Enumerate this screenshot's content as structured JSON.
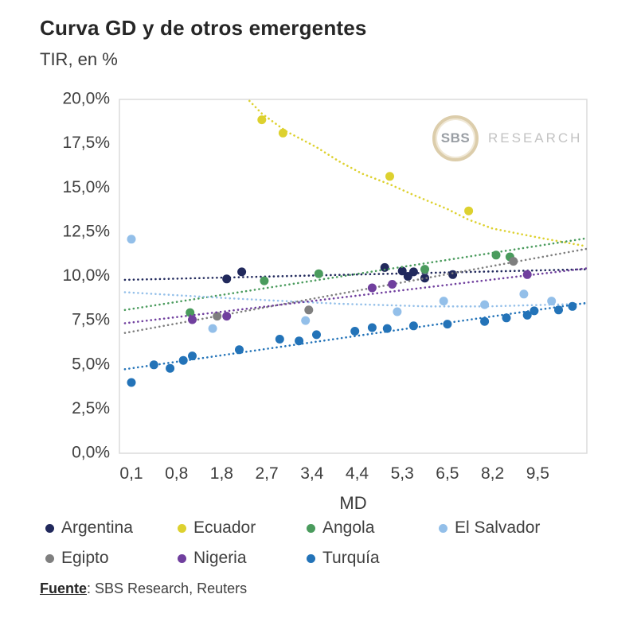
{
  "title": "Curva GD y de otros emergentes",
  "y_axis_title": "TIR, en %",
  "x_axis_label": "MD",
  "watermark": {
    "circle_text": "SBS",
    "text": "RESEARCH"
  },
  "footer": {
    "label": "Fuente",
    "text": ": SBS Research, Reuters"
  },
  "chart_data": {
    "type": "scatter",
    "title": "Curva GD y de otros emergentes",
    "xlabel": "MD",
    "ylabel": "TIR, en %",
    "ylim": [
      0,
      20
    ],
    "y_ticks": [
      "20,0%",
      "17,5%",
      "15,0%",
      "12,5%",
      "10,0%",
      "7,5%",
      "5,0%",
      "2,5%",
      "0,0%"
    ],
    "x_ticks": [
      "0,1",
      "0,8",
      "1,8",
      "2,7",
      "3,4",
      "4,4",
      "5,3",
      "6,5",
      "8,2",
      "9,5"
    ],
    "x_tick_values": [
      0.1,
      0.8,
      1.8,
      2.7,
      3.4,
      4.4,
      5.3,
      6.5,
      8.2,
      9.5
    ],
    "x_scale": "ordinal ticks equally spaced",
    "grid": false,
    "legend_position": "bottom",
    "series": [
      {
        "name": "Argentina",
        "color": "#21295c",
        "points": [
          [
            1.9,
            9.85
          ],
          [
            2.2,
            10.25
          ],
          [
            4.95,
            10.5
          ],
          [
            5.3,
            10.3
          ],
          [
            5.45,
            10.0
          ],
          [
            5.6,
            10.25
          ],
          [
            5.9,
            9.9
          ],
          [
            6.7,
            10.1
          ]
        ],
        "trend": [
          [
            0.0,
            9.8
          ],
          [
            10.9,
            10.4
          ]
        ]
      },
      {
        "name": "Ecuador",
        "color": "#ddd12f",
        "points": [
          [
            2.6,
            18.85
          ],
          [
            2.95,
            18.1
          ],
          [
            5.05,
            15.65
          ],
          [
            7.3,
            13.7
          ]
        ],
        "trend": [
          [
            2.05,
            20.8
          ],
          [
            2.6,
            19.2
          ],
          [
            3.0,
            18.2
          ],
          [
            3.5,
            17.3
          ],
          [
            4.0,
            16.5
          ],
          [
            4.5,
            15.8
          ],
          [
            5.05,
            15.2
          ],
          [
            5.6,
            14.6
          ],
          [
            6.5,
            13.8
          ],
          [
            7.3,
            13.2
          ],
          [
            8.2,
            12.7
          ],
          [
            9.5,
            12.2
          ],
          [
            10.9,
            11.7
          ]
        ]
      },
      {
        "name": "Angola",
        "color": "#4a9b5d",
        "points": [
          [
            1.1,
            7.95
          ],
          [
            2.65,
            9.75
          ],
          [
            3.55,
            10.15
          ],
          [
            5.9,
            10.4
          ],
          [
            8.3,
            11.2
          ],
          [
            8.7,
            11.1
          ]
        ],
        "trend": [
          [
            0.0,
            8.1
          ],
          [
            10.9,
            12.15
          ]
        ]
      },
      {
        "name": "El Salvador",
        "color": "#93bfe9",
        "points": [
          [
            0.1,
            12.1
          ],
          [
            1.6,
            7.05
          ],
          [
            3.3,
            7.5
          ],
          [
            5.2,
            8.0
          ],
          [
            6.4,
            8.6
          ],
          [
            7.9,
            8.4
          ],
          [
            9.1,
            9.0
          ],
          [
            9.9,
            8.6
          ]
        ],
        "trend": [
          [
            0.0,
            9.1
          ],
          [
            2.0,
            8.75
          ],
          [
            4.0,
            8.45
          ],
          [
            6.0,
            8.3
          ],
          [
            8.0,
            8.3
          ],
          [
            10.9,
            8.45
          ]
        ]
      },
      {
        "name": "Egipto",
        "color": "#7f7f7f",
        "points": [
          [
            1.7,
            7.75
          ],
          [
            3.35,
            8.1
          ],
          [
            8.8,
            10.85
          ]
        ],
        "trend": [
          [
            0.0,
            6.8
          ],
          [
            10.9,
            11.55
          ]
        ]
      },
      {
        "name": "Nigeria",
        "color": "#703f9e",
        "points": [
          [
            1.15,
            7.55
          ],
          [
            1.9,
            7.75
          ],
          [
            4.7,
            9.35
          ],
          [
            5.1,
            9.55
          ],
          [
            9.2,
            10.1
          ]
        ],
        "trend": [
          [
            0.0,
            7.35
          ],
          [
            10.9,
            10.45
          ]
        ]
      },
      {
        "name": "Turquía",
        "color": "#2373b8",
        "points": [
          [
            0.1,
            4.0
          ],
          [
            0.45,
            5.0
          ],
          [
            0.7,
            4.8
          ],
          [
            0.95,
            5.25
          ],
          [
            1.15,
            5.5
          ],
          [
            2.15,
            5.85
          ],
          [
            2.9,
            6.45
          ],
          [
            3.2,
            6.35
          ],
          [
            3.5,
            6.7
          ],
          [
            4.35,
            6.9
          ],
          [
            4.7,
            7.1
          ],
          [
            5.0,
            7.05
          ],
          [
            5.6,
            7.2
          ],
          [
            6.5,
            7.3
          ],
          [
            7.9,
            7.45
          ],
          [
            8.6,
            7.65
          ],
          [
            9.2,
            7.8
          ],
          [
            9.4,
            8.05
          ],
          [
            10.1,
            8.1
          ],
          [
            10.5,
            8.3
          ]
        ],
        "trend": [
          [
            0.0,
            4.75
          ],
          [
            10.9,
            8.5
          ]
        ]
      }
    ],
    "legend_rows": [
      [
        "Argentina",
        "Ecuador",
        "Angola",
        "El Salvador"
      ],
      [
        "Egipto",
        "Nigeria",
        "Turquía"
      ]
    ]
  }
}
